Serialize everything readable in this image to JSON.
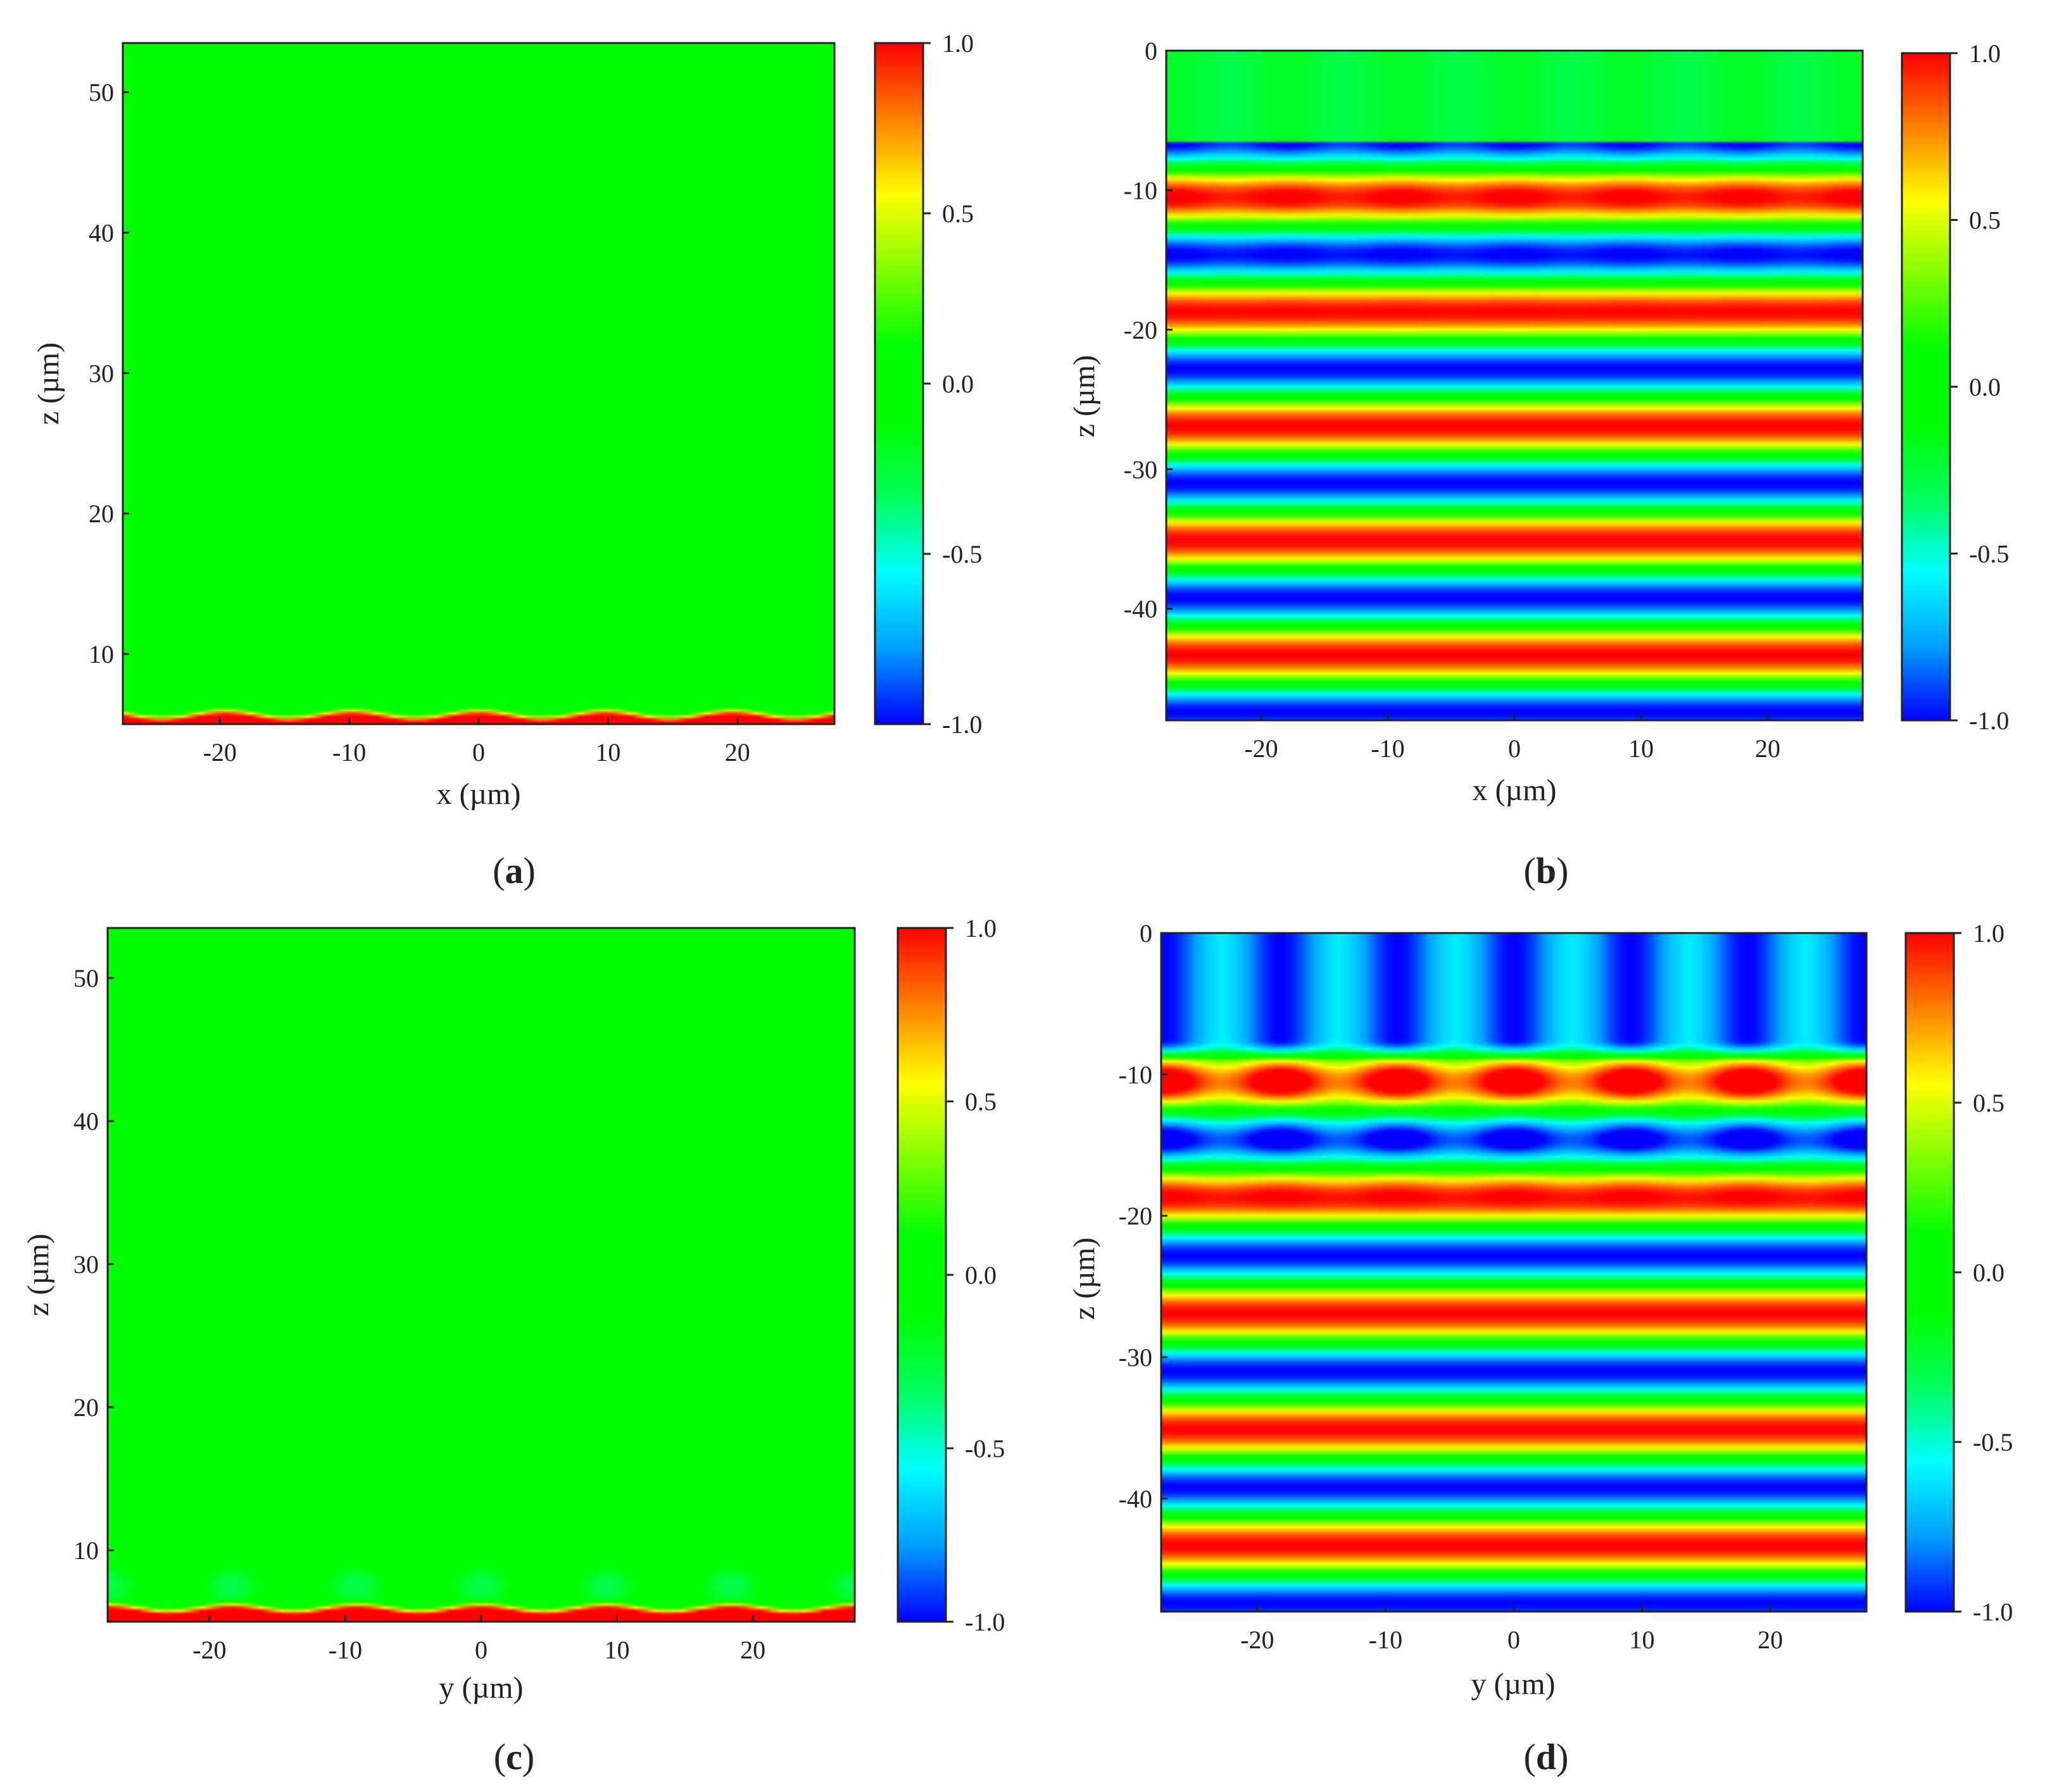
{
  "figure": {
    "colormap": {
      "name": "jet",
      "stops": [
        "#0000ff",
        "#00a0ff",
        "#00ffff",
        "#00ff5a",
        "#00ff00",
        "#00ff00",
        "#80ff00",
        "#ffff00",
        "#ff8000",
        "#ff0000"
      ],
      "range": [
        -1.0,
        1.0
      ]
    }
  },
  "chart_data": [
    {
      "id": "a",
      "type": "heatmap",
      "caption": "a",
      "xlabel": "x (µm)",
      "ylabel": "z (µm)",
      "xlim": [
        -27.5,
        27.5
      ],
      "ylim": [
        5,
        53.5
      ],
      "xticks": [
        -20,
        -10,
        0,
        10,
        20
      ],
      "xtick_labels": [
        "-20",
        "-10",
        "0",
        "10",
        "20"
      ],
      "yticks": [
        10,
        20,
        30,
        40,
        50
      ],
      "ytick_labels": [
        "10",
        "20",
        "30",
        "40",
        "50"
      ],
      "colorbar": {
        "ticks": [
          1.0,
          0.5,
          0.0,
          -0.5,
          -1.0
        ],
        "labels": [
          "1.0",
          "0.5",
          "0.0",
          "-0.5",
          "-1.0"
        ]
      },
      "field": {
        "model": "surface-edge",
        "period": 9.8,
        "edge_z": 5.5,
        "background": 0.0
      }
    },
    {
      "id": "b",
      "type": "heatmap",
      "caption": "b",
      "xlabel": "x (µm)",
      "ylabel": "z (µm)",
      "xlim": [
        -27.5,
        27.5
      ],
      "ylim": [
        -48,
        0
      ],
      "xticks": [
        -20,
        -10,
        0,
        10,
        20
      ],
      "xtick_labels": [
        "-20",
        "-10",
        "0",
        "10",
        "20"
      ],
      "yticks": [
        0,
        -10,
        -20,
        -30,
        -40
      ],
      "ytick_labels": [
        "0",
        "-10",
        "-20",
        "-30",
        "-40"
      ],
      "colorbar": {
        "ticks": [
          1.0,
          0.5,
          0.0,
          -0.5,
          -1.0
        ],
        "labels": [
          "1.0",
          "0.5",
          "0.0",
          "-0.5",
          "-1.0"
        ]
      },
      "field": {
        "model": "standing-wave",
        "period": 9.0,
        "wavelength": 8.2,
        "peak_z": -10.5,
        "top_band_z": -6.5,
        "lobe_strength": 0.15,
        "top_value": -0.3
      }
    },
    {
      "id": "c",
      "type": "heatmap",
      "caption": "c",
      "xlabel": "y (µm)",
      "ylabel": "z (µm)",
      "xlim": [
        -27.5,
        27.5
      ],
      "ylim": [
        5,
        53.5
      ],
      "xticks": [
        -20,
        -10,
        0,
        10,
        20
      ],
      "xtick_labels": [
        "-20",
        "-10",
        "0",
        "10",
        "20"
      ],
      "yticks": [
        10,
        20,
        30,
        40,
        50
      ],
      "ytick_labels": [
        "10",
        "20",
        "30",
        "40",
        "50"
      ],
      "colorbar": {
        "ticks": [
          1.0,
          0.5,
          0.0,
          -0.5,
          -1.0
        ],
        "labels": [
          "1.0",
          "0.5",
          "0.0",
          "-0.5",
          "-1.0"
        ]
      },
      "field": {
        "model": "surface-edge",
        "period": 9.2,
        "edge_z": 5.8,
        "background": 0.0,
        "spot_z": [
          7.5,
          16.3
        ],
        "spot_value": [
          -0.3,
          -0.12
        ]
      }
    },
    {
      "id": "d",
      "type": "heatmap",
      "caption": "d",
      "xlabel": "y (µm)",
      "ylabel": "z (µm)",
      "xlim": [
        -27.5,
        27.5
      ],
      "ylim": [
        -48,
        0
      ],
      "xticks": [
        -20,
        -10,
        0,
        10,
        20
      ],
      "xtick_labels": [
        "-20",
        "-10",
        "0",
        "10",
        "20"
      ],
      "yticks": [
        0,
        -10,
        -20,
        -30,
        -40
      ],
      "ytick_labels": [
        "0",
        "-10",
        "-20",
        "-30",
        "-40"
      ],
      "colorbar": {
        "ticks": [
          1.0,
          0.5,
          0.0,
          -0.5,
          -1.0
        ],
        "labels": [
          "1.0",
          "0.5",
          "0.0",
          "-0.5",
          "-1.0"
        ]
      },
      "field": {
        "model": "standing-wave",
        "period": 9.1,
        "wavelength": 8.2,
        "peak_z": -10.5,
        "top_band_z": -9.0,
        "lobe_strength": 0.75,
        "top_value": -1.0
      }
    }
  ]
}
